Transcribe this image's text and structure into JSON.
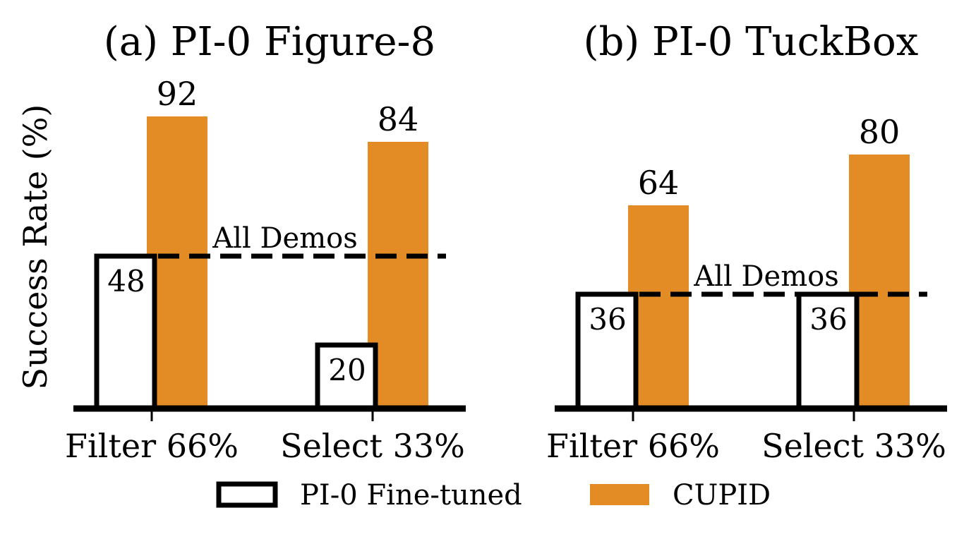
{
  "chart_data": [
    {
      "type": "bar",
      "title": "(a) PI-0 Figure-8",
      "ylabel": "Success Rate (%)",
      "categories": [
        "Filter 66%",
        "Select 33%"
      ],
      "series": [
        {
          "name": "PI-0 Fine-tuned",
          "values": [
            48,
            20
          ]
        },
        {
          "name": "CUPID",
          "values": [
            92,
            84
          ]
        }
      ],
      "reference_line": {
        "label": "All Demos",
        "value": 48
      },
      "ylim": [
        0,
        100
      ],
      "grid": false
    },
    {
      "type": "bar",
      "title": "(b) PI-0 TuckBox",
      "categories": [
        "Filter 66%",
        "Select 33%"
      ],
      "series": [
        {
          "name": "PI-0 Fine-tuned",
          "values": [
            36,
            36
          ]
        },
        {
          "name": "CUPID",
          "values": [
            64,
            80
          ]
        }
      ],
      "reference_line": {
        "label": "All Demos",
        "value": 36
      },
      "ylim": [
        0,
        100
      ],
      "grid": false
    }
  ],
  "legend": {
    "placement": "bottom",
    "items": [
      {
        "label": "PI-0 Fine-tuned",
        "style": "outline"
      },
      {
        "label": "CUPID",
        "style": "filled"
      }
    ]
  },
  "colors": {
    "cupid": "#e38b24",
    "outline": "#000000",
    "fill": "#ffffff"
  }
}
